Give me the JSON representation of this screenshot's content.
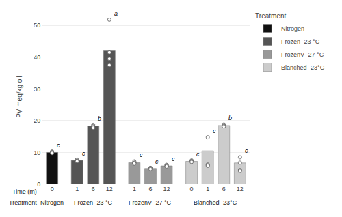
{
  "chart_data": {
    "type": "bar",
    "categories": [
      "0",
      "1",
      "6",
      "12",
      "1",
      "6",
      "12",
      "0",
      "1",
      "6",
      "12"
    ],
    "series": [
      {
        "name": "Nitrogen",
        "color": "#111111",
        "values": [
          10.0,
          null,
          null,
          null,
          null,
          null,
          null,
          null,
          null,
          null,
          null
        ],
        "dots": [
          [
            10.3,
            10.1,
            10.0,
            9.8
          ],
          null,
          null,
          null,
          null,
          null,
          null,
          null,
          null,
          null,
          null
        ]
      },
      {
        "name": "Frozen -23 °C",
        "color": "#555555",
        "values": [
          null,
          7.5,
          18.3,
          42.0,
          null,
          null,
          null,
          null,
          null,
          null,
          null
        ],
        "dots": [
          null,
          [
            7.8,
            7.5,
            7.4,
            7.2
          ],
          [
            18.7,
            18.3,
            18.0,
            17.8
          ],
          [
            51.8,
            41.5,
            39.5,
            37.5
          ],
          null,
          null,
          null,
          null,
          null,
          null,
          null
        ]
      },
      {
        "name": "FrozenV -27 °C",
        "color": "#999999",
        "values": [
          null,
          null,
          null,
          null,
          6.8,
          5.0,
          5.8,
          null,
          null,
          null,
          null
        ],
        "dots": [
          null,
          null,
          null,
          null,
          [
            7.2,
            6.8,
            6.7,
            6.5
          ],
          [
            5.2,
            5.1,
            5.0,
            4.8
          ],
          [
            6.1,
            6.0,
            5.8,
            5.6
          ],
          null,
          null,
          null,
          null
        ]
      },
      {
        "name": "Blanched -23°C",
        "color": "#cccccc",
        "values": [
          null,
          null,
          null,
          null,
          null,
          null,
          null,
          7.2,
          10.5,
          18.5,
          6.7
        ],
        "dots": [
          null,
          null,
          null,
          null,
          null,
          null,
          null,
          [
            7.5,
            7.3,
            7.2,
            7.0
          ],
          [
            14.8,
            6.2,
            6.0,
            5.8
          ],
          [
            18.8,
            18.5,
            18.4,
            18.2
          ],
          [
            8.5,
            6.8,
            4.5,
            4.2
          ]
        ]
      }
    ],
    "annotations": [
      "c",
      "c",
      "b",
      "a",
      "c",
      "c",
      "c",
      "c",
      "c",
      "b",
      "c"
    ],
    "ylabel": "PV meq/kg oil",
    "row_labels": [
      "Time (m)",
      "Treatment"
    ],
    "legend_title": "Treatment",
    "ylim": [
      0,
      55
    ],
    "yticks": [
      0,
      10,
      20,
      30,
      40,
      50
    ],
    "grid": true
  }
}
